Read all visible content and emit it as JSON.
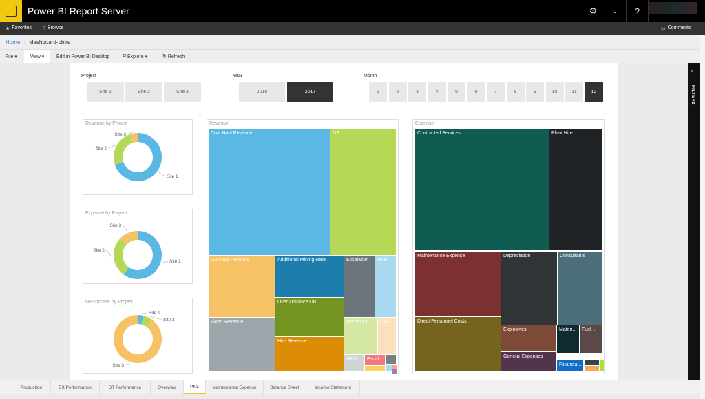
{
  "header": {
    "app_title": "Power BI Report Server",
    "icons": [
      "gear-icon",
      "download-icon",
      "help-icon"
    ],
    "brand_color": "#f2c811"
  },
  "nav": {
    "favorites": "Favorites",
    "browse": "Browse",
    "comments": "Comments"
  },
  "breadcrumb": {
    "home": "Home",
    "separator": "›",
    "current": "dashboard-pbirs"
  },
  "toolbar": {
    "file": "File ▾",
    "view": "View ▾",
    "edit": "Edit in Power BI Desktop",
    "explore": "Explore ▾",
    "refresh": "Refresh"
  },
  "slicers": {
    "project": {
      "label": "Project",
      "options": [
        "Site 1",
        "Site 2",
        "Site 3"
      ],
      "selected": []
    },
    "year": {
      "label": "Year",
      "options": [
        "2016",
        "2017"
      ],
      "selected": [
        "2017"
      ]
    },
    "month": {
      "label": "Month",
      "options": [
        "1",
        "2",
        "3",
        "4",
        "5",
        "6",
        "7",
        "8",
        "9",
        "10",
        "11",
        "12"
      ],
      "selected": [
        "12"
      ]
    }
  },
  "filters_pane": {
    "label": "FILTERS"
  },
  "chart_data": [
    {
      "type": "pie",
      "title": "Revenue by Project",
      "categories": [
        "Site 1",
        "Site 2",
        "Site 3"
      ],
      "values": [
        70,
        25,
        5
      ],
      "colors": [
        "#5bb8e4",
        "#b5d957",
        "#f7c165"
      ]
    },
    {
      "type": "pie",
      "title": "Expense by Project",
      "categories": [
        "Site 1",
        "Site 2",
        "Site 3"
      ],
      "values": [
        60,
        27,
        13
      ],
      "colors": [
        "#5bb8e4",
        "#b5d957",
        "#f7c165"
      ]
    },
    {
      "type": "pie",
      "title": "Net Income by Project",
      "categories": [
        "Site 1",
        "Site 2",
        "Site 3"
      ],
      "values": [
        4,
        6,
        90
      ],
      "colors": [
        "#5bb8e4",
        "#b5d957",
        "#f7c165"
      ]
    },
    {
      "type": "treemap",
      "title": "Revenue",
      "items": [
        {
          "label": "Coal Haul Revenue",
          "color": "#5bb8e4"
        },
        {
          "label": "OB",
          "color": "#b5d957"
        },
        {
          "label": "OB Haul Revenue",
          "color": "#f7c165"
        },
        {
          "label": "Fixed Revenue",
          "color": "#9ea6ab"
        },
        {
          "label": "Additional Mining Rate",
          "color": "#1d7ead"
        },
        {
          "label": "Over Distance OB",
          "color": "#739421"
        },
        {
          "label": "Hire Revenue",
          "color": "#dd8c06"
        },
        {
          "label": "Escalation",
          "color": "#6b757b"
        },
        {
          "label": "RAR",
          "color": "#a9d8f1"
        },
        {
          "label": "Interim CC",
          "color": "#d5e8a3"
        },
        {
          "label": "Ove...",
          "color": "#fbe1bb"
        },
        {
          "label": "HRM",
          "color": "#d1d4d6"
        },
        {
          "label": "Escal...",
          "color": "#f2797c"
        },
        {
          "label": "",
          "color": "#7a7f82"
        },
        {
          "label": "",
          "color": "#f5d35e"
        },
        {
          "label": "",
          "color": "#a7dcf0"
        },
        {
          "label": "",
          "color": "#f4a582"
        },
        {
          "label": "",
          "color": "#9e7bb5"
        }
      ]
    },
    {
      "type": "treemap",
      "title": "Expense",
      "items": [
        {
          "label": "Contracted Services",
          "color": "#105b52"
        },
        {
          "label": "Plant Hire",
          "color": "#1f2326"
        },
        {
          "label": "Maintenance Expense",
          "color": "#7d3031"
        },
        {
          "label": "Direct Personnel Costs",
          "color": "#77641c"
        },
        {
          "label": "Depreciation",
          "color": "#2f3436"
        },
        {
          "label": "Consultants",
          "color": "#4b6e79"
        },
        {
          "label": "Explosives",
          "color": "#7d4a37"
        },
        {
          "label": "General Expenses",
          "color": "#53344d"
        },
        {
          "label": "Materi...",
          "color": "#0f2a31"
        },
        {
          "label": "Fuel ...",
          "color": "#5b4848"
        },
        {
          "label": "Financia...",
          "color": "#0f6fc6"
        },
        {
          "label": "",
          "color": "#374150"
        },
        {
          "label": "",
          "color": "#f6a75a"
        },
        {
          "label": "",
          "color": "#a7e22e"
        }
      ]
    }
  ],
  "tabs": {
    "items": [
      "Production",
      "EX Performance",
      "DT Performance",
      "Overview",
      "PNL",
      "Maintenance Expense",
      "Balance Sheet",
      "Income Statement"
    ],
    "selected": "PNL"
  }
}
